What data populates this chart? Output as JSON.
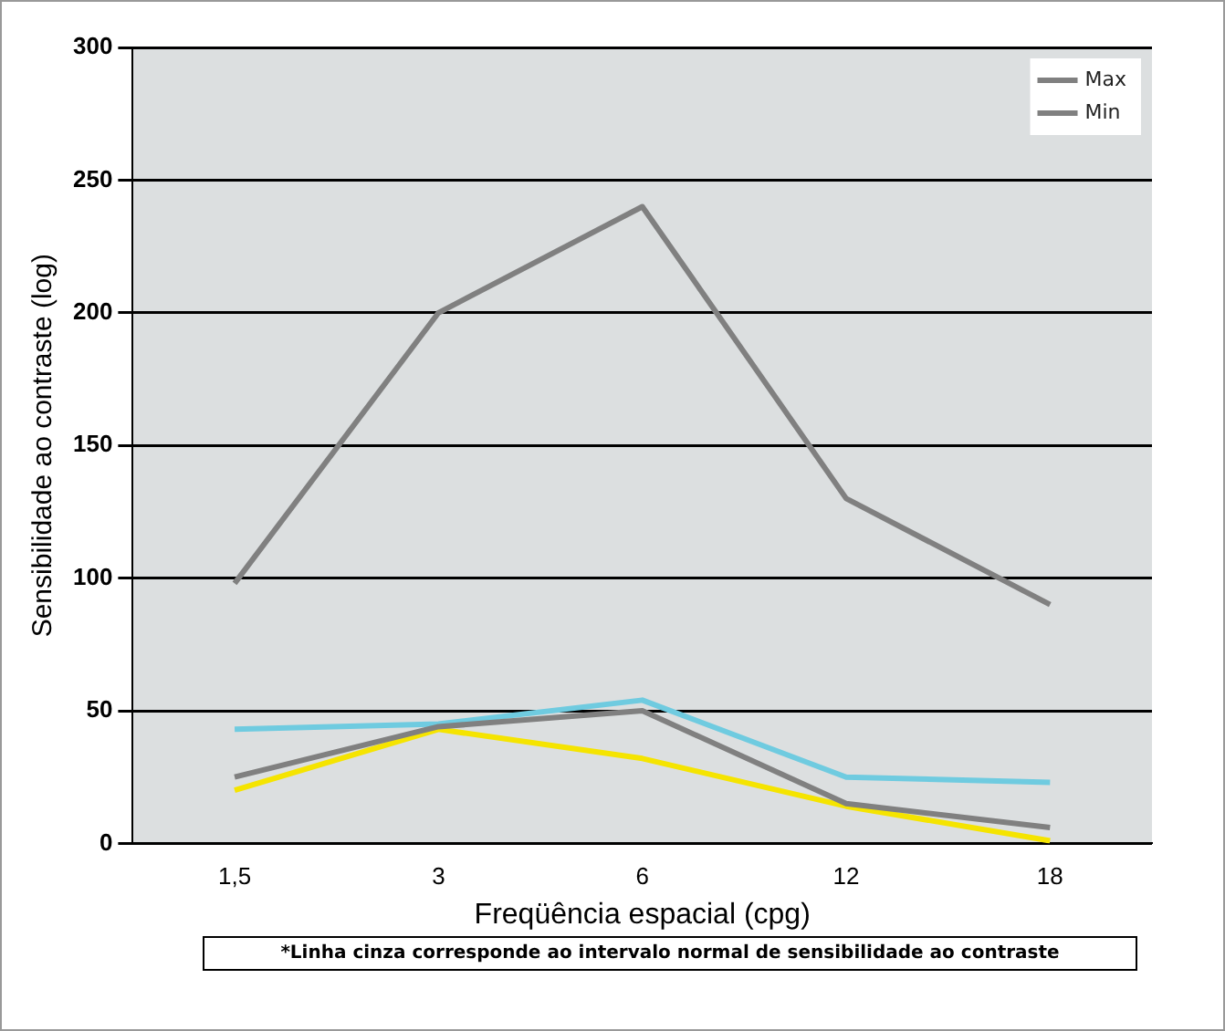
{
  "chart_data": {
    "type": "line",
    "xlabel": "Freqüência espacial (cpg)",
    "ylabel": "Sensibilidade ao contraste (log)",
    "categories": [
      "1,5",
      "3",
      "6",
      "12",
      "18"
    ],
    "series": [
      {
        "name": "Max",
        "color": "#808080",
        "values": [
          98,
          200,
          240,
          130,
          90
        ]
      },
      {
        "name": "Min",
        "color": "#808080",
        "values": [
          25,
          44,
          50,
          15,
          6
        ]
      },
      {
        "color": "#f5e400",
        "values": [
          20,
          43,
          32,
          14,
          1
        ]
      },
      {
        "color": "#6fcbe0",
        "values": [
          43,
          45,
          54,
          25,
          23
        ]
      }
    ],
    "ylim": [
      0,
      300
    ],
    "yticks": [
      0,
      50,
      100,
      150,
      200,
      250,
      300
    ],
    "grid": "y",
    "legend": "top right",
    "marker": "none",
    "annotations": [
      "*Linha cinza corresponde ao intervalo normal de sensibilidade ao contraste"
    ]
  }
}
